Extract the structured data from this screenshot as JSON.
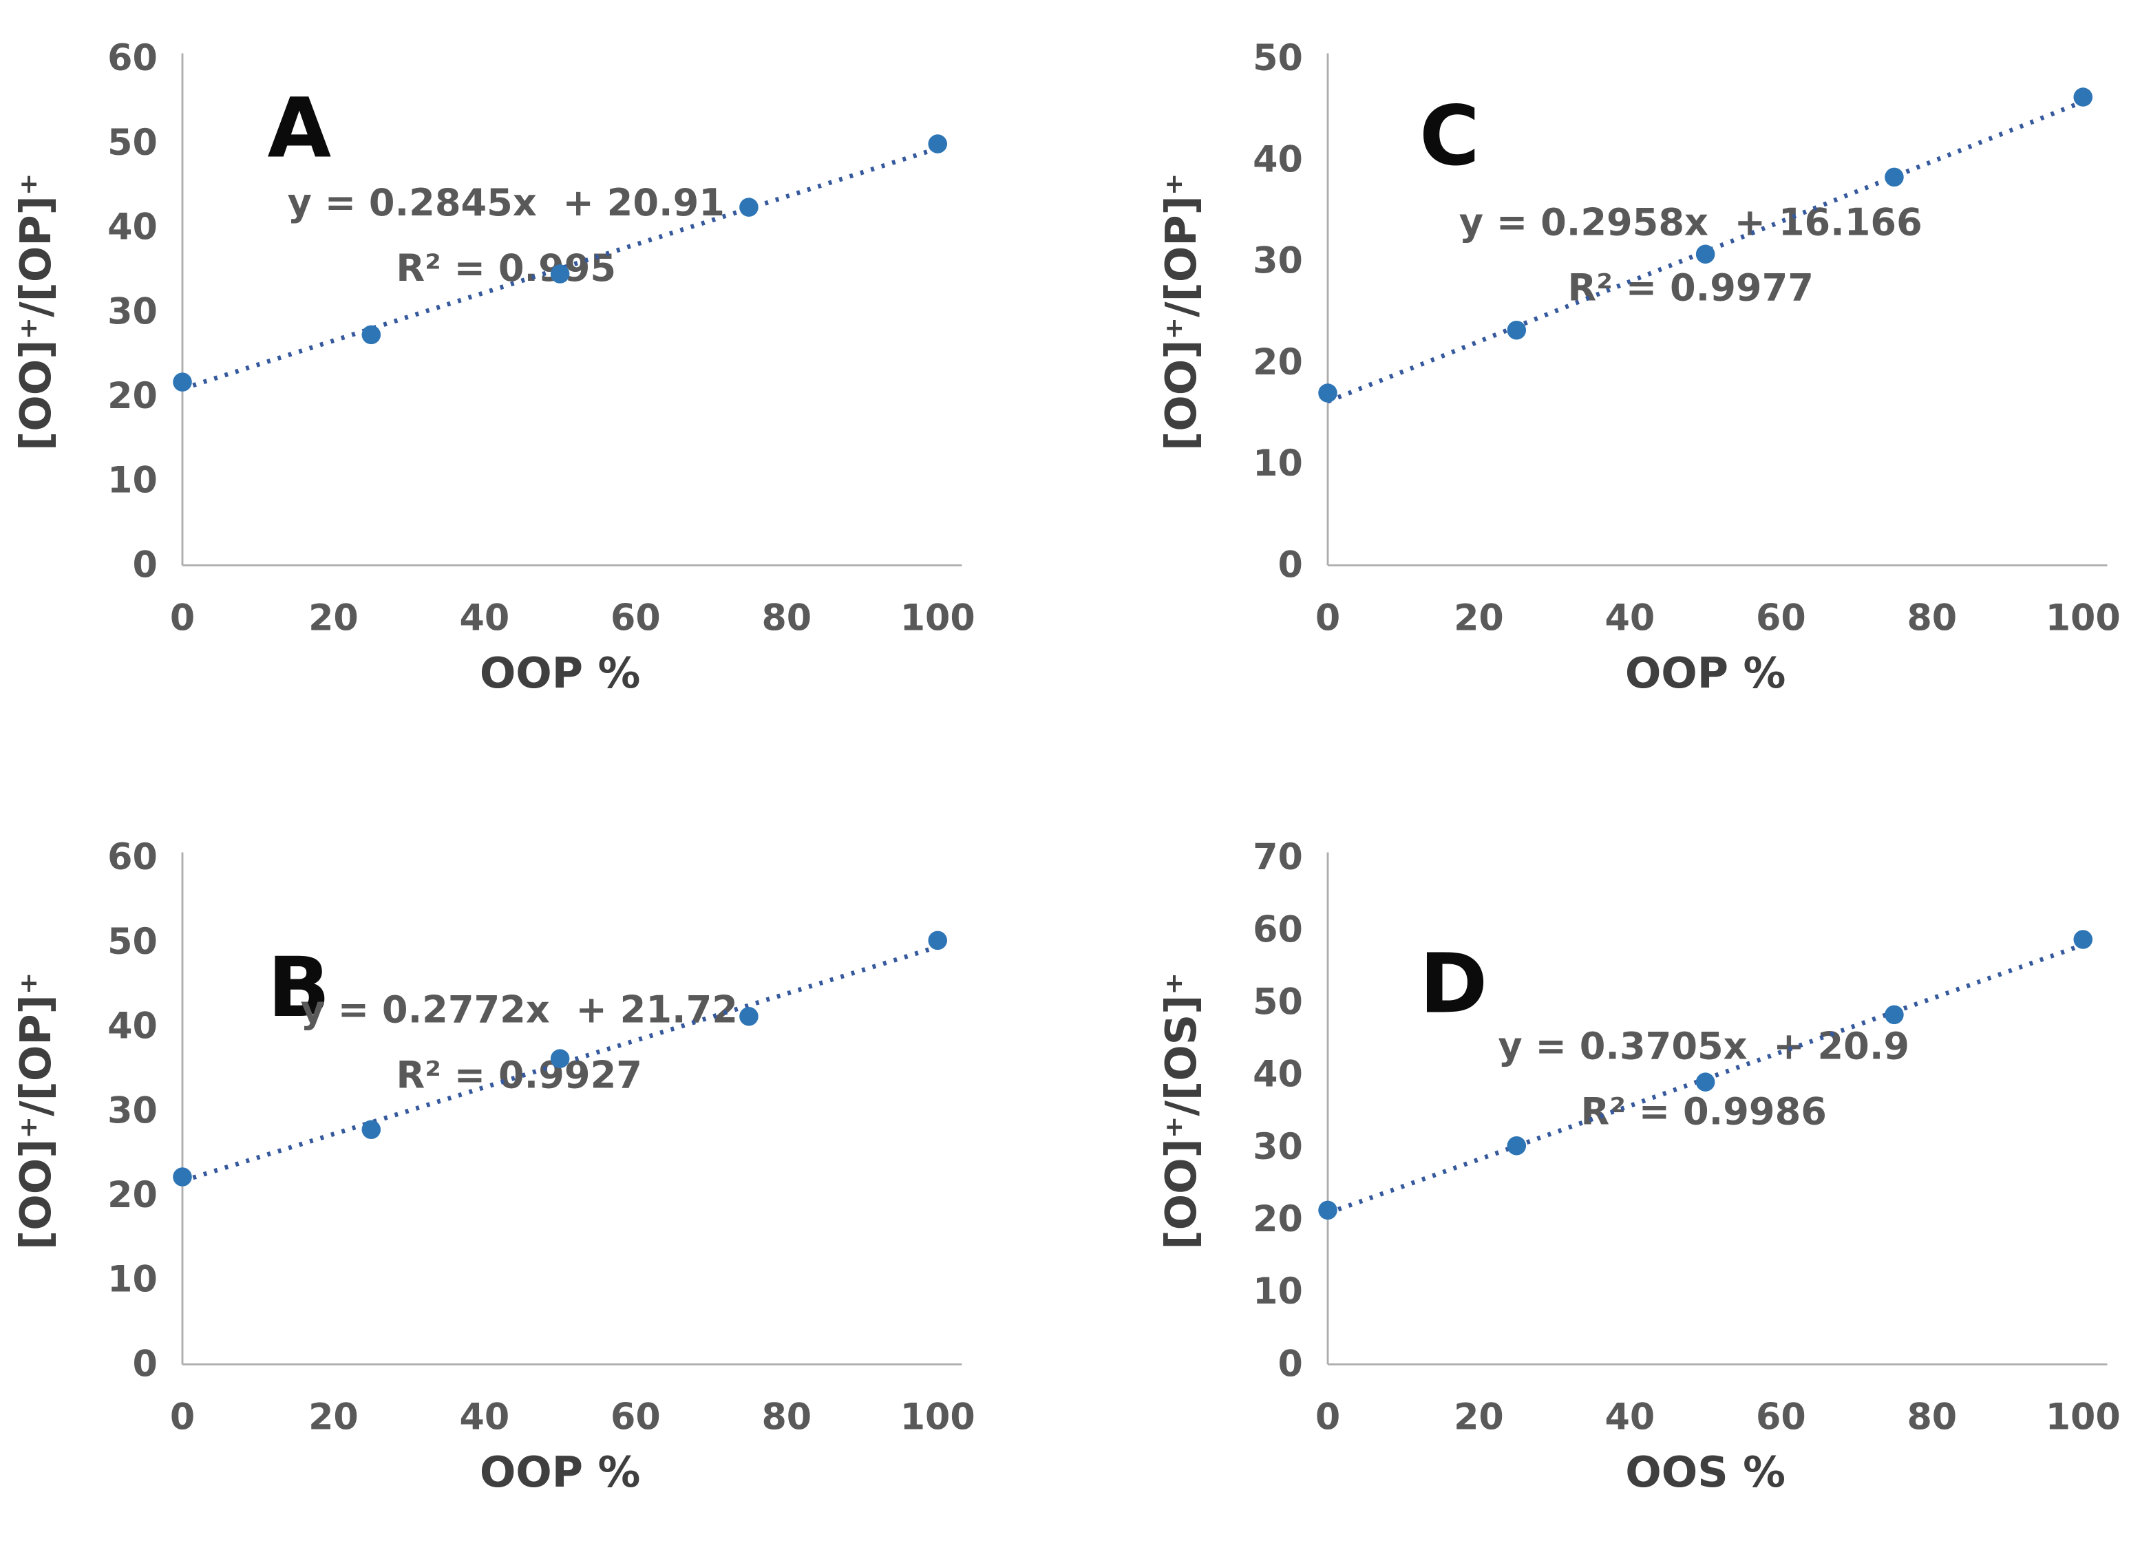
{
  "figure": {
    "background": "#ffffff",
    "description_colors": {
      "marker": "#2E75B6",
      "trendline": "#35599C",
      "axis_line": "#ADADAD",
      "tick_text": "#595959",
      "equation_text": "#595959",
      "axis_title_text": "#3F3F3F",
      "panel_letter": "#0B0B0B"
    }
  },
  "chart_data": [
    {
      "type": "scatter",
      "panel_label": "A",
      "title": "",
      "equation": "y = 0.2845x  + 20.91",
      "r_squared": "R² = 0.995",
      "xlabel": "OOP %",
      "ylabel": "[OO]⁺/[OP]⁺",
      "xlim": [
        0,
        100
      ],
      "ylim": [
        0,
        60
      ],
      "xticks": [
        0,
        20,
        40,
        60,
        80,
        100
      ],
      "yticks": [
        0,
        10,
        20,
        30,
        40,
        50,
        60
      ],
      "grid": false,
      "legend": "none",
      "x": [
        0,
        25,
        50,
        75,
        100
      ],
      "y": [
        21.7,
        27.3,
        34.5,
        42.4,
        49.9
      ],
      "trendline": {
        "style": "dotted",
        "slope": 0.2845,
        "intercept": 20.91
      }
    },
    {
      "type": "scatter",
      "panel_label": "C",
      "title": "",
      "equation": "y = 0.2958x  + 16.166",
      "r_squared": "R² = 0.9977",
      "xlabel": "OOP %",
      "ylabel": "[OO]⁺/[OP]⁺",
      "xlim": [
        0,
        100
      ],
      "ylim": [
        0,
        50
      ],
      "xticks": [
        0,
        20,
        40,
        60,
        80,
        100
      ],
      "yticks": [
        0,
        10,
        20,
        30,
        40,
        50
      ],
      "grid": false,
      "legend": "none",
      "x": [
        0,
        25,
        50,
        75,
        100
      ],
      "y": [
        17.0,
        23.2,
        30.7,
        38.3,
        46.2
      ],
      "trendline": {
        "style": "dotted",
        "slope": 0.2958,
        "intercept": 16.166
      }
    },
    {
      "type": "scatter",
      "panel_label": "B",
      "title": "",
      "equation": "y = 0.2772x  + 21.72",
      "r_squared": "R² = 0.9927",
      "xlabel": "OOP %",
      "ylabel": "[OO]⁺/[OP]⁺",
      "xlim": [
        0,
        100
      ],
      "ylim": [
        0,
        60
      ],
      "xticks": [
        0,
        20,
        40,
        60,
        80,
        100
      ],
      "yticks": [
        0,
        10,
        20,
        30,
        40,
        50,
        60
      ],
      "grid": false,
      "legend": "none",
      "x": [
        0,
        25,
        50,
        75,
        100
      ],
      "y": [
        22.2,
        27.8,
        36.2,
        41.2,
        50.2
      ],
      "trendline": {
        "style": "dotted",
        "slope": 0.2772,
        "intercept": 21.72
      }
    },
    {
      "type": "scatter",
      "panel_label": "D",
      "title": "",
      "equation": "y = 0.3705x  + 20.9",
      "r_squared": "R² = 0.9986",
      "xlabel": "OOS %",
      "ylabel": "[OO]⁺/[OS]⁺",
      "xlim": [
        0,
        100
      ],
      "ylim": [
        0,
        70
      ],
      "xticks": [
        0,
        20,
        40,
        60,
        80,
        100
      ],
      "yticks": [
        0,
        10,
        20,
        30,
        40,
        50,
        60,
        70
      ],
      "grid": false,
      "legend": "none",
      "x": [
        0,
        25,
        50,
        75,
        100
      ],
      "y": [
        21.3,
        30.2,
        39.0,
        48.3,
        58.7
      ],
      "trendline": {
        "style": "dotted",
        "slope": 0.3705,
        "intercept": 20.9
      }
    }
  ]
}
